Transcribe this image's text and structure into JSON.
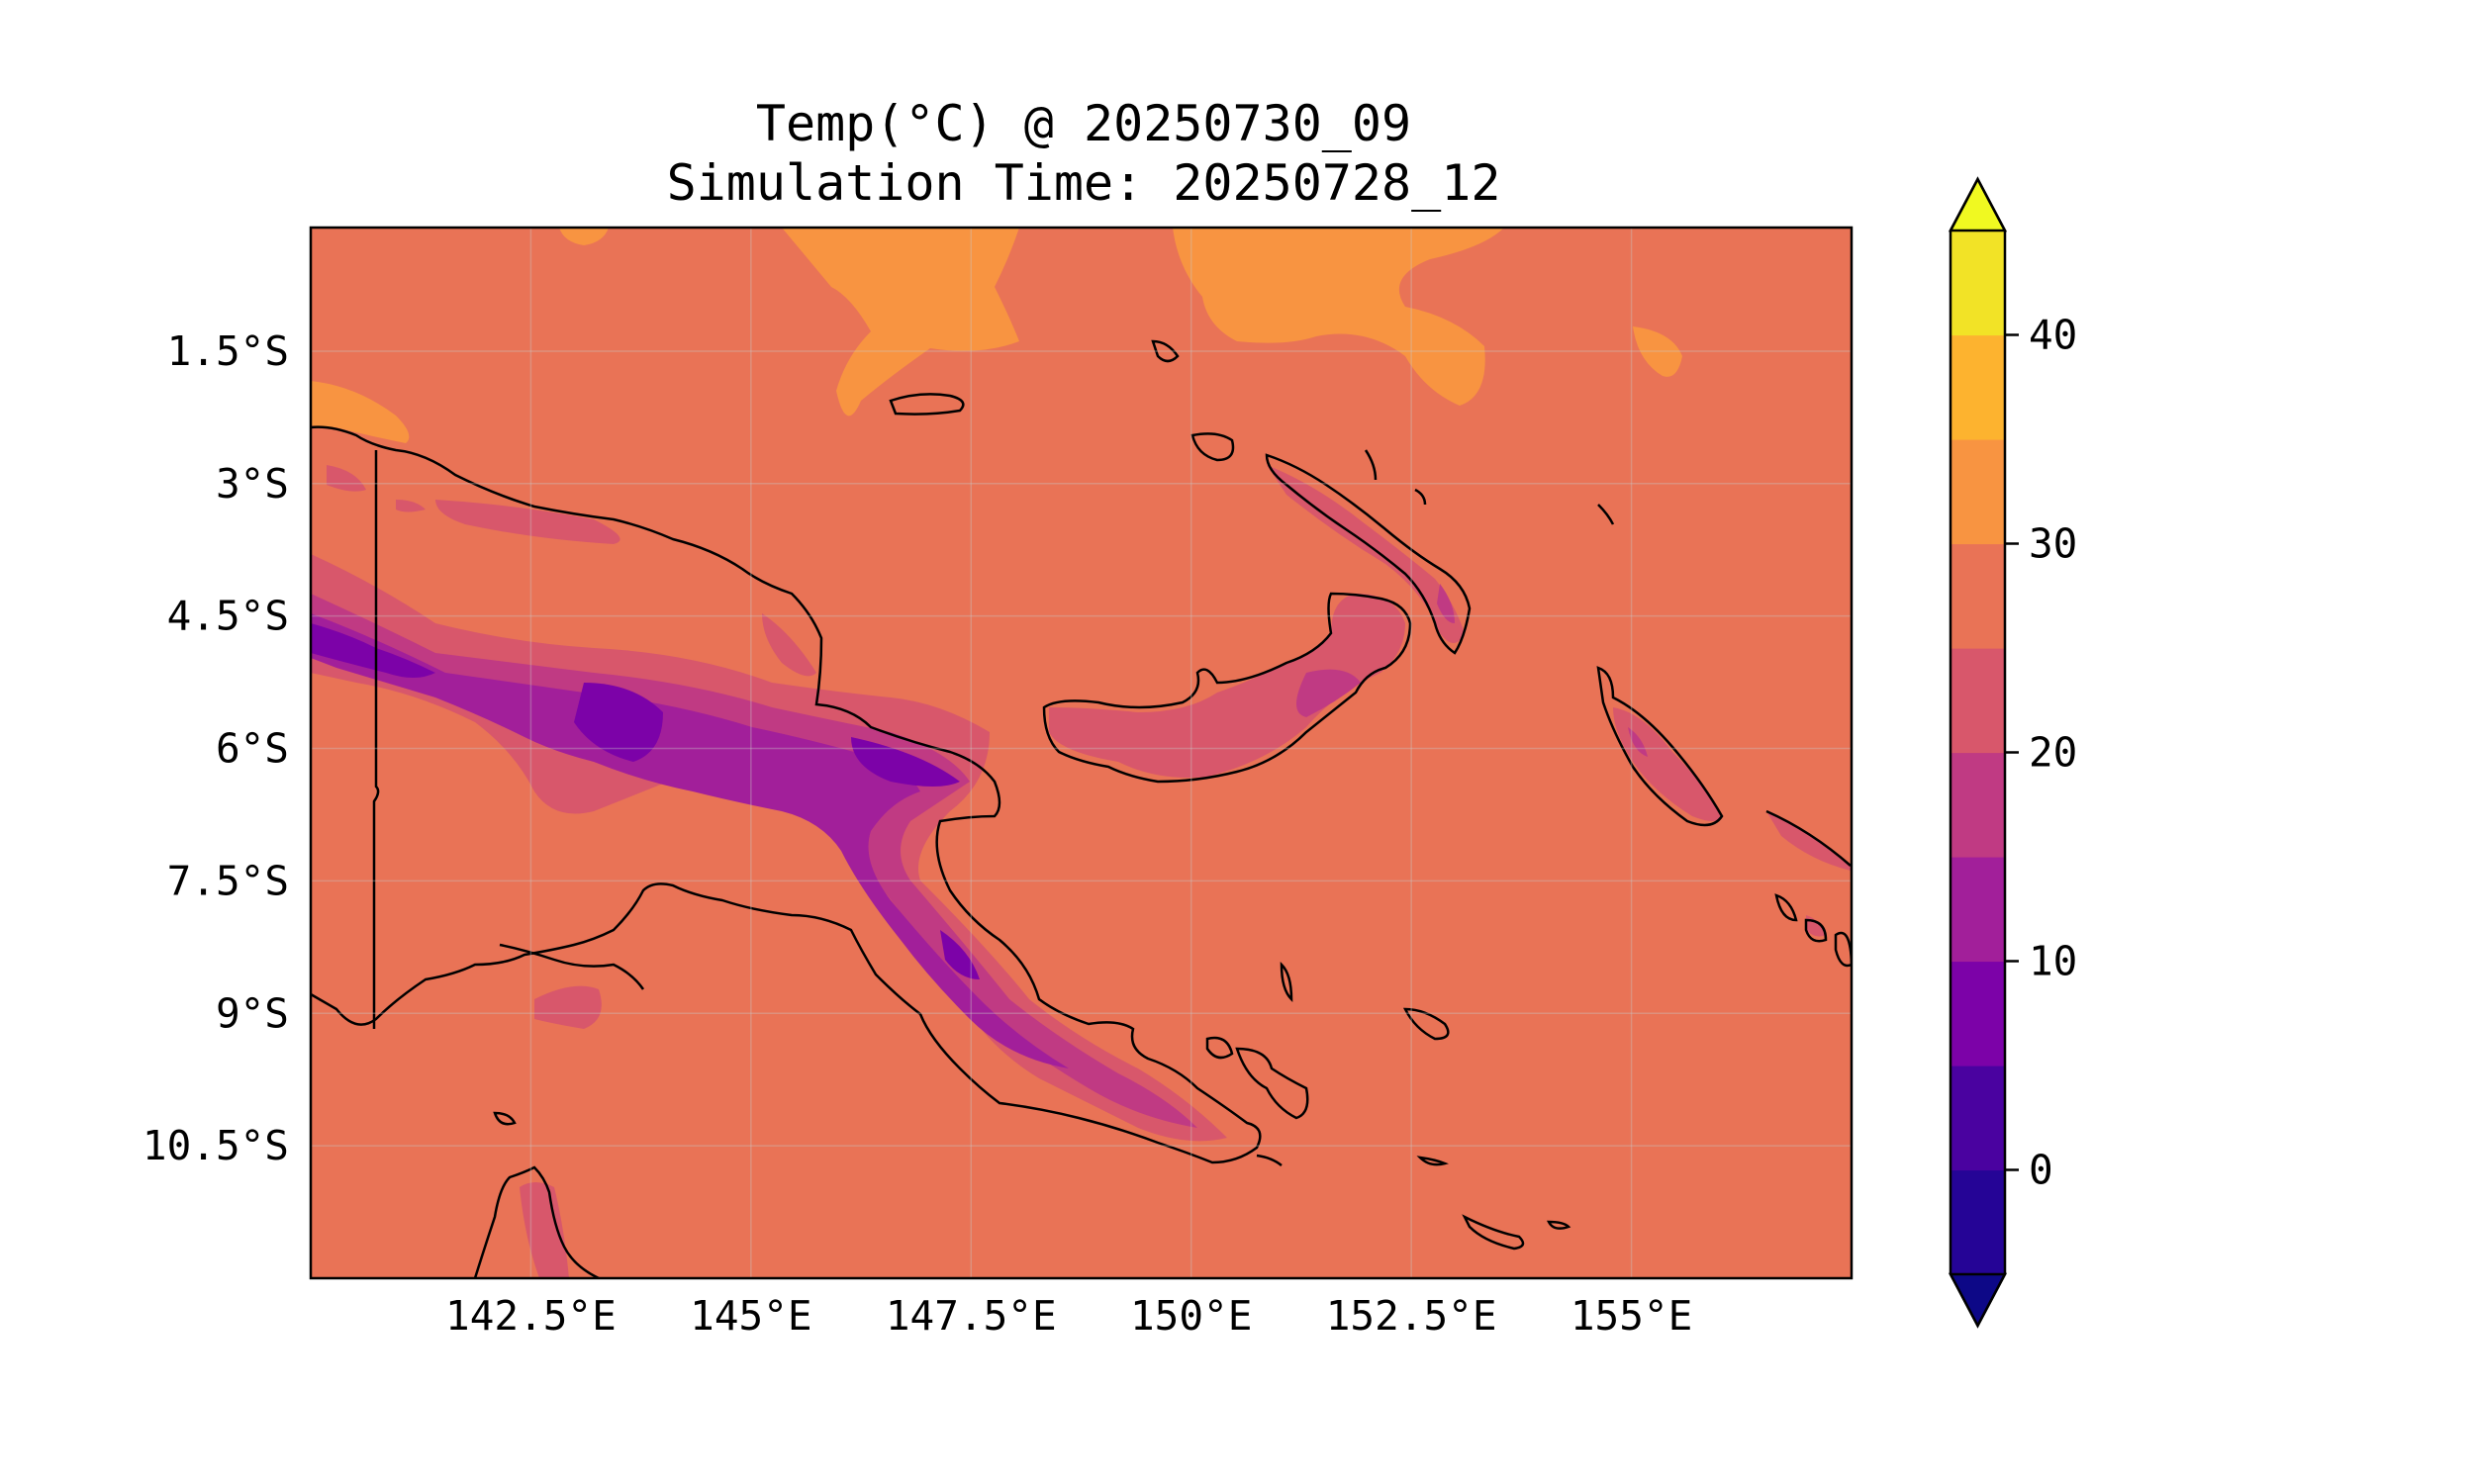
{
  "title": {
    "line1": "Temp(°C) @ 20250730_09",
    "line2": "Simulation Time: 20250728_12"
  },
  "map": {
    "lon_range": [
      140.0,
      157.5
    ],
    "lat_range": [
      -12.0,
      -0.1
    ],
    "x_ticks": [
      {
        "value": 142.5,
        "label": "142.5°E"
      },
      {
        "value": 145.0,
        "label": "145°E"
      },
      {
        "value": 147.5,
        "label": "147.5°E"
      },
      {
        "value": 150.0,
        "label": "150°E"
      },
      {
        "value": 152.5,
        "label": "152.5°E"
      },
      {
        "value": 155.0,
        "label": "155°E"
      }
    ],
    "y_ticks": [
      {
        "value": -1.5,
        "label": "1.5°S"
      },
      {
        "value": -3.0,
        "label": "3°S"
      },
      {
        "value": -4.5,
        "label": "4.5°S"
      },
      {
        "value": -6.0,
        "label": "6°S"
      },
      {
        "value": -7.5,
        "label": "7.5°S"
      },
      {
        "value": -9.0,
        "label": "9°S"
      },
      {
        "value": -10.5,
        "label": "10.5°S"
      }
    ],
    "background_color": "#e97356"
  },
  "colorbar": {
    "min": -5,
    "max": 45,
    "extend": "both",
    "levels": [
      -5,
      0,
      5,
      10,
      15,
      20,
      25,
      30,
      35,
      40,
      45
    ],
    "colors": [
      "#250496",
      "#4a02a0",
      "#7c02a8",
      "#a21f9a",
      "#c03a83",
      "#d8576b",
      "#e97356",
      "#f89441",
      "#fdb32f",
      "#f2e326"
    ],
    "under_color": "#0d0887",
    "over_color": "#f0f921",
    "ticks": [
      {
        "value": 0,
        "label": "0"
      },
      {
        "value": 10,
        "label": "10"
      },
      {
        "value": 20,
        "label": "20"
      },
      {
        "value": 30,
        "label": "30"
      },
      {
        "value": 40,
        "label": "40"
      }
    ]
  }
}
